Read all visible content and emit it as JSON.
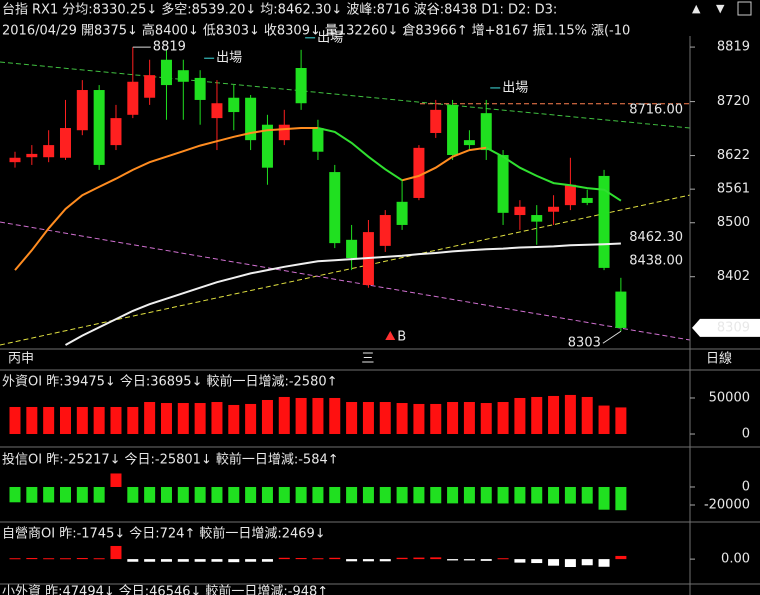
{
  "header": {
    "line1": [
      {
        "text": "台指",
        "color": "#ffffff"
      },
      {
        "text": "RX1",
        "color": "#ffffff"
      },
      {
        "text": "分均:8330.25↓",
        "color": "#60e0ff"
      },
      {
        "text": "多空:8539.20↓",
        "color": "#ff7050"
      },
      {
        "text": "均:8462.30↓",
        "color": "#ffffff"
      },
      {
        "text": "波峰:8716",
        "color": "#ff8040"
      },
      {
        "text": "波谷:8438",
        "color": "#40ff40"
      },
      {
        "text": "D1:",
        "color": "#ff3030"
      },
      {
        "text": "D2:",
        "color": "#ff3030"
      },
      {
        "text": "D3:",
        "color": "#4050ff"
      }
    ],
    "line2": [
      {
        "text": "2016/04/29",
        "color": "#ffffff"
      },
      {
        "text": "開8375↓",
        "color": "#40ff40"
      },
      {
        "text": "高8400↓",
        "color": "#e0ff40"
      },
      {
        "text": "低8303↓",
        "color": "#40ff40"
      },
      {
        "text": "收8309↓",
        "color": "#40ff40"
      },
      {
        "text": "量132260↓",
        "color": "#ffffff"
      },
      {
        "text": "倉83966↑",
        "color": "#ffffff"
      },
      {
        "text": "增+8167",
        "color": "#ffffff"
      },
      {
        "text": "振1.15%",
        "color": "#ffffff"
      },
      {
        "text": "漲(-10",
        "color": "#ffffff"
      }
    ]
  },
  "chart_data": [
    {
      "type": "candlestick",
      "open": [
        8610,
        8619,
        8619,
        8618,
        8668,
        8741,
        8641,
        8696,
        8727,
        8796,
        8777,
        8763,
        8690,
        8727,
        8727,
        8678,
        8650,
        8781,
        8672,
        8592,
        8469,
        8387,
        8458,
        8538,
        8545,
        8663,
        8714,
        8650,
        8699,
        8623,
        8514,
        8514,
        8520,
        8532,
        8545,
        8585,
        8375
      ],
      "high": [
        8629,
        8641,
        8668,
        8723,
        8759,
        8750,
        8714,
        8819,
        8796,
        8815,
        8796,
        8777,
        8759,
        8750,
        8732,
        8696,
        8705,
        8814,
        8687,
        8605,
        8496,
        8505,
        8523,
        8578,
        8641,
        8723,
        8723,
        8668,
        8723,
        8632,
        8541,
        8532,
        8550,
        8618,
        8560,
        8596,
        8400
      ],
      "low": [
        8600,
        8605,
        8610,
        8614,
        8659,
        8596,
        8632,
        8690,
        8714,
        8687,
        8687,
        8678,
        8632,
        8668,
        8632,
        8569,
        8641,
        8705,
        8614,
        8454,
        8414,
        8382,
        8447,
        8487,
        8541,
        8654,
        8614,
        8632,
        8614,
        8496,
        8487,
        8460,
        8496,
        8523,
        8532,
        8414,
        8303
      ],
      "close": [
        8618,
        8625,
        8641,
        8672,
        8741,
        8605,
        8690,
        8756,
        8768,
        8750,
        8756,
        8723,
        8717,
        8701,
        8650,
        8600,
        8678,
        8717,
        8629,
        8463,
        8436,
        8483,
        8514,
        8496,
        8636,
        8705,
        8623,
        8641,
        8632,
        8518,
        8529,
        8502,
        8529,
        8569,
        8536,
        8418,
        8309
      ],
      "up_color": "#ff2020",
      "down_color": "#20e020",
      "categories": [
        "丙申",
        null,
        null,
        null,
        null,
        null,
        null,
        null,
        null,
        null,
        null,
        null,
        null,
        null,
        null,
        null,
        null,
        null,
        null,
        null,
        null,
        "三",
        null,
        null,
        null,
        null,
        null,
        null,
        null,
        null,
        null,
        null,
        null,
        null,
        null,
        null,
        null
      ],
      "period": "日線",
      "ylim": [
        8278,
        8850
      ],
      "yticks": [
        8402,
        8500,
        8561,
        8622,
        8720,
        8819
      ],
      "series": [
        {
          "color": "#ff8c20",
          "values": [
            8414,
            8450,
            8490,
            8525,
            8550,
            8565,
            8580,
            8596,
            8610,
            8620,
            8630,
            8640,
            8648,
            8656,
            8663,
            8668,
            8670,
            8672,
            8672,
            null,
            null,
            null,
            null,
            8577,
            8585,
            8600,
            8620,
            8632,
            8636,
            null,
            null,
            null,
            null,
            null,
            null,
            null,
            null
          ]
        },
        {
          "color": "#30e030",
          "values": [
            null,
            null,
            null,
            null,
            null,
            null,
            null,
            null,
            null,
            null,
            null,
            null,
            null,
            null,
            null,
            null,
            null,
            null,
            8672,
            8665,
            8645,
            8620,
            8597,
            8577,
            null,
            null,
            null,
            null,
            8636,
            8620,
            8600,
            8585,
            8572,
            8568,
            8563,
            8560,
            8540
          ]
        },
        {
          "color": "#f0f0f0",
          "values": [
            null,
            null,
            null,
            8278,
            8295,
            8310,
            8325,
            8340,
            8352,
            8362,
            8372,
            8382,
            8392,
            8400,
            8408,
            8414,
            8420,
            8425,
            8430,
            8432,
            8434,
            8436,
            8438,
            8440,
            8443,
            8445,
            8448,
            8450,
            8452,
            8453,
            8455,
            8456,
            8457,
            8459,
            8460,
            8461,
            8462.3
          ]
        }
      ],
      "levels": [
        {
          "value": 8716,
          "label": "8716.00",
          "color": "#ff8050"
        }
      ],
      "price_labels": [
        {
          "value": 8462.3,
          "label": "8462.30",
          "color": "#ffffff"
        },
        {
          "value": 8438,
          "label": "8438.00",
          "color": "#30ff30"
        }
      ],
      "last_price": 8309,
      "extremes": [
        null,
        null,
        null,
        null,
        null,
        null,
        null,
        8819,
        null,
        null,
        null,
        null,
        null,
        null,
        null,
        null,
        null,
        null,
        null,
        null,
        null,
        null,
        null,
        null,
        null,
        null,
        null,
        null,
        null,
        null,
        null,
        null,
        null,
        null,
        null,
        null,
        8303
      ],
      "signals": [
        null,
        null,
        null,
        null,
        null,
        null,
        null,
        null,
        null,
        null,
        null,
        {
          "label": "出場",
          "color": "#40e0e0"
        },
        null,
        null,
        null,
        null,
        null,
        {
          "label": "出場",
          "color": "#40e0e0"
        },
        null,
        null,
        null,
        null,
        {
          "label": "B",
          "color": "#ff3030"
        },
        null,
        null,
        null,
        null,
        null,
        {
          "label": "出場",
          "color": "#40e0e0"
        },
        null,
        null,
        null,
        null,
        null,
        null,
        null,
        null
      ]
    },
    {
      "type": "bar",
      "title": [
        {
          "text": "外資OI 昨:39475↓",
          "color": "#ffffff"
        },
        {
          "text": "今日:36895↓",
          "color": "#ffff40"
        },
        {
          "text": "較前一日增減:-2580↑",
          "color": "#ff40ff"
        }
      ],
      "values": [
        37500,
        37500,
        37500,
        37500,
        37500,
        37500,
        37500,
        37500,
        44400,
        43000,
        43000,
        43000,
        44400,
        40300,
        41700,
        47200,
        51400,
        50000,
        50000,
        50000,
        44400,
        44400,
        44400,
        43000,
        41700,
        41700,
        44400,
        44400,
        43000,
        44400,
        50000,
        51400,
        52800,
        54200,
        51400,
        39475,
        36895
      ],
      "up_color": "#ff1010",
      "down_color": "#20e020",
      "ylim": [
        -8300,
        68000
      ],
      "yticks": [
        0,
        50000
      ]
    },
    {
      "type": "bar",
      "title": [
        {
          "text": "投信OI 昨:-25217↓",
          "color": "#ffffff"
        },
        {
          "text": "今日:-25801↓",
          "color": "#ffff40"
        },
        {
          "text": "較前一日增減:-584↑",
          "color": "#ff40ff"
        }
      ],
      "values": [
        -17000,
        -17500,
        -17200,
        -17300,
        -17500,
        -17400,
        15000,
        -17500,
        -17500,
        -17600,
        -17600,
        -17600,
        -17700,
        -17700,
        -17800,
        -17800,
        -17800,
        -17900,
        -17900,
        -17900,
        -18000,
        -18000,
        -18000,
        -18100,
        -18100,
        -18100,
        -18200,
        -18200,
        -18200,
        -18300,
        -18300,
        -18300,
        -18400,
        -18400,
        -18400,
        -25217,
        -25801
      ],
      "up_color": "#ff1010",
      "down_color": "#20e020",
      "ylim": [
        -31100,
        24400
      ],
      "yticks": [
        -20000,
        0
      ]
    },
    {
      "type": "bar",
      "title": [
        {
          "text": "自營商OI 昨:-1745↓",
          "color": "#ffffff"
        },
        {
          "text": "今日:724↑",
          "color": "#ffff40"
        },
        {
          "text": "較前一日增減:2469↓",
          "color": "#ff40ff"
        }
      ],
      "values": [
        200,
        250,
        200,
        200,
        250,
        200,
        3000,
        -600,
        -600,
        -600,
        -600,
        -600,
        -600,
        -700,
        -600,
        -600,
        300,
        250,
        200,
        300,
        -500,
        -500,
        -500,
        300,
        350,
        400,
        -300,
        -300,
        -400,
        200,
        -800,
        -900,
        -1500,
        -1800,
        -1400,
        -1745,
        724
      ],
      "up_color": "#ff1010",
      "down_color": "#ffffff",
      "ylim": [
        -5450,
        4360
      ],
      "yticks": [
        {
          "value": 0,
          "label": "0.00"
        }
      ]
    },
    {
      "type": "bar",
      "title": [
        {
          "text": "小外資 昨:47494↓",
          "color": "#ffffff"
        },
        {
          "text": "今日:46546↓",
          "color": "#ffff40"
        },
        {
          "text": "較前一日增減:-948↑",
          "color": "#ff40ff"
        }
      ]
    }
  ]
}
